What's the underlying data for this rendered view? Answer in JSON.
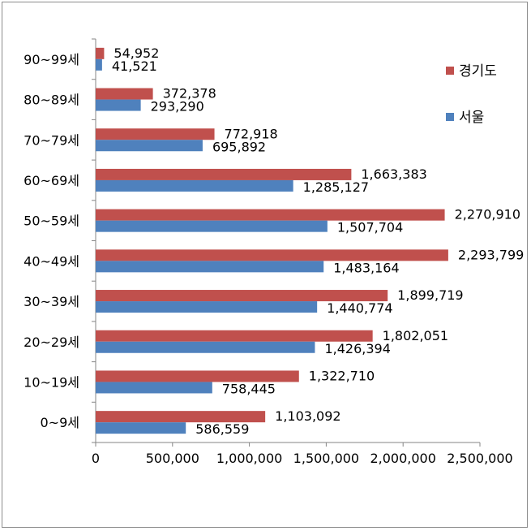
{
  "chart_data": {
    "type": "bar",
    "orientation": "horizontal",
    "categories": [
      "0~9세",
      "10~19세",
      "20~29세",
      "30~39세",
      "40~49세",
      "50~59세",
      "60~69세",
      "70~79세",
      "80~89세",
      "90~99세"
    ],
    "series": [
      {
        "name": "경기도",
        "color": "#c0504d",
        "values": [
          1103092,
          1322710,
          1802051,
          1899719,
          2293799,
          2270910,
          1663383,
          772918,
          372378,
          54952
        ],
        "labels": [
          "1,103,092",
          "1,322,710",
          "1,802,051",
          "1,899,719",
          "2,293,799",
          "2,270,910",
          "1,663,383",
          "772,918",
          "372,378",
          "54,952"
        ]
      },
      {
        "name": "서울",
        "color": "#4f81bd",
        "values": [
          586559,
          758445,
          1426394,
          1440774,
          1483164,
          1507704,
          1285127,
          695892,
          293290,
          41521
        ],
        "labels": [
          "586,559",
          "758,445",
          "1,426,394",
          "1,440,774",
          "1,483,164",
          "1,507,704",
          "1,285,127",
          "695,892",
          "293,290",
          "41,521"
        ]
      }
    ],
    "xlim": [
      0,
      2500000
    ],
    "x_ticks": [
      0,
      500000,
      1000000,
      1500000,
      2000000,
      2500000
    ],
    "x_tick_labels": [
      "0",
      "500,000",
      "1,000,000",
      "1,500,000",
      "2,000,000",
      "2,500,000"
    ],
    "legend": [
      "경기도",
      "서울"
    ],
    "legend_position": "right",
    "grid": false,
    "title": "",
    "xlabel": "",
    "ylabel": ""
  }
}
